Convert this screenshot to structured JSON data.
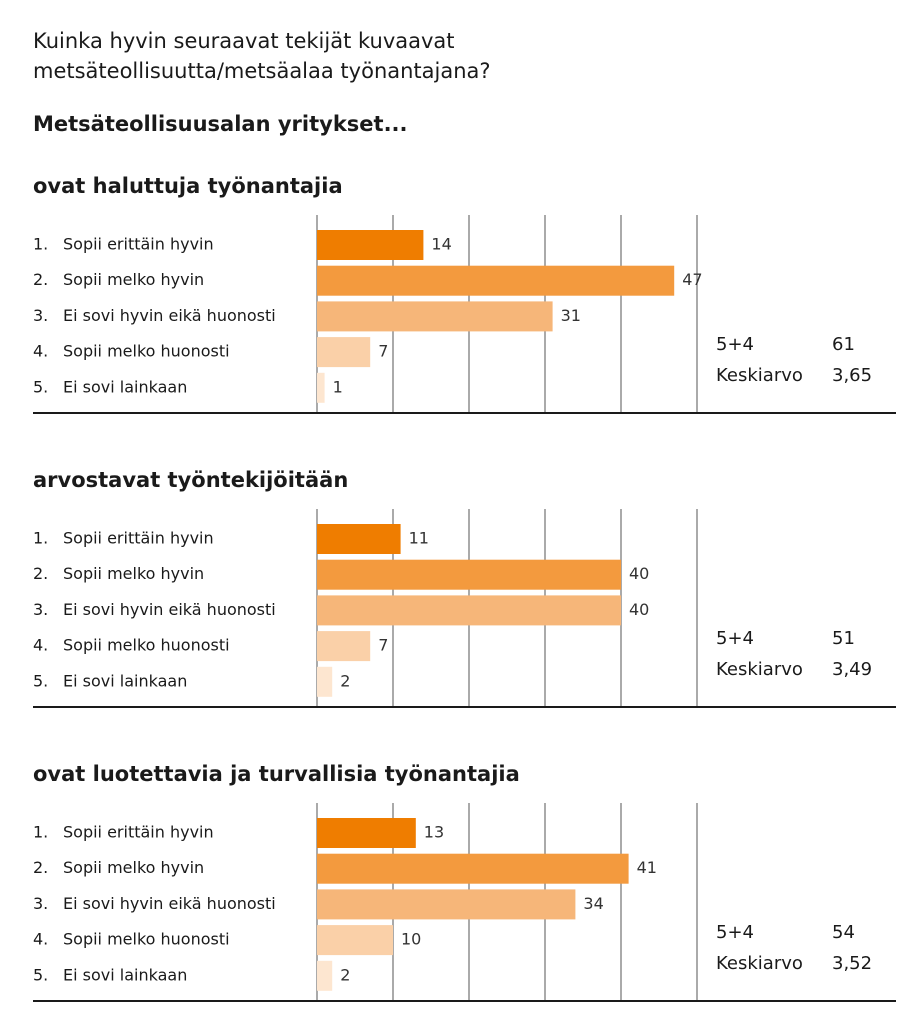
{
  "title_lines": [
    "Kuinka hyvin seuraavat tekijät kuvaavat",
    "metsäteollisuutta/metsäalaa työnantajana?"
  ],
  "subtitle": "Metsäteollisuusalan yritykset...",
  "chart_data": [
    {
      "type": "bar",
      "orientation": "horizontal",
      "title": "ovat haluttuja työnantajia",
      "category_numbers": [
        "1.",
        "2.",
        "3.",
        "4.",
        "5."
      ],
      "categories": [
        "Sopii erittäin hyvin",
        "Sopii melko hyvin",
        "Ei sovi hyvin eikä huonosti",
        "Sopii melko huonosti",
        "Ei sovi lainkaan"
      ],
      "values": [
        14,
        47,
        31,
        7,
        1
      ],
      "colors": [
        "#ef7d00",
        "#f39a3e",
        "#f6b679",
        "#fad0a8",
        "#fde6d0"
      ],
      "xlim": [
        0,
        50
      ],
      "xticks": [
        0,
        10,
        20,
        30,
        40,
        50
      ],
      "grid": true,
      "summary": [
        {
          "label": "5+4",
          "value": 61
        },
        {
          "label": "Keskiarvo",
          "value": 3.65,
          "value_label": "3,65"
        }
      ]
    },
    {
      "type": "bar",
      "orientation": "horizontal",
      "title": "arvostavat työntekijöitään",
      "category_numbers": [
        "1.",
        "2.",
        "3.",
        "4.",
        "5."
      ],
      "categories": [
        "Sopii erittäin hyvin",
        "Sopii melko hyvin",
        "Ei sovi hyvin eikä huonosti",
        "Sopii melko huonosti",
        "Ei sovi lainkaan"
      ],
      "values": [
        11,
        40,
        40,
        7,
        2
      ],
      "colors": [
        "#ef7d00",
        "#f39a3e",
        "#f6b679",
        "#fad0a8",
        "#fde6d0"
      ],
      "xlim": [
        0,
        50
      ],
      "xticks": [
        0,
        10,
        20,
        30,
        40,
        50
      ],
      "grid": true,
      "summary": [
        {
          "label": "5+4",
          "value": 51
        },
        {
          "label": "Keskiarvo",
          "value": 3.49,
          "value_label": "3,49"
        }
      ]
    },
    {
      "type": "bar",
      "orientation": "horizontal",
      "title": "ovat luotettavia ja turvallisia työnantajia",
      "category_numbers": [
        "1.",
        "2.",
        "3.",
        "4.",
        "5."
      ],
      "categories": [
        "Sopii erittäin hyvin",
        "Sopii melko hyvin",
        "Ei sovi hyvin eikä huonosti",
        "Sopii melko huonosti",
        "Ei sovi lainkaan"
      ],
      "values": [
        13,
        41,
        34,
        10,
        2
      ],
      "colors": [
        "#ef7d00",
        "#f39a3e",
        "#f6b679",
        "#fad0a8",
        "#fde6d0"
      ],
      "xlim": [
        0,
        50
      ],
      "xticks": [
        0,
        10,
        20,
        30,
        40,
        50
      ],
      "grid": true,
      "summary": [
        {
          "label": "5+4",
          "value": 54
        },
        {
          "label": "Keskiarvo",
          "value": 3.52,
          "value_label": "3,52"
        }
      ]
    }
  ]
}
